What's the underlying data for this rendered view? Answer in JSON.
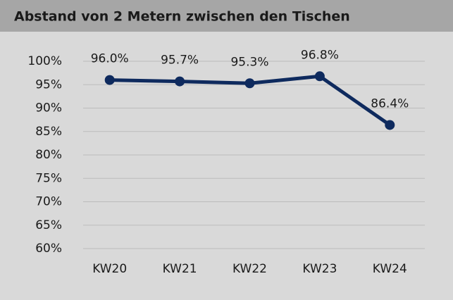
{
  "chart_data": {
    "type": "line",
    "title": "Abstand von 2 Metern zwischen den Tischen",
    "categories": [
      "KW20",
      "KW21",
      "KW22",
      "KW23",
      "KW24"
    ],
    "series": [
      {
        "name": "Abstand",
        "color": "#0e2a5e",
        "values": [
          96.0,
          95.7,
          95.3,
          96.8,
          86.4
        ],
        "value_labels": [
          "96.0%",
          "95.7%",
          "95.3%",
          "96.8%",
          "86.4%"
        ]
      }
    ],
    "ylim": [
      60,
      100
    ],
    "yticks": [
      {
        "value": 60,
        "label": "60%"
      },
      {
        "value": 65,
        "label": "65%"
      },
      {
        "value": 70,
        "label": "70%"
      },
      {
        "value": 75,
        "label": "75%"
      },
      {
        "value": 80,
        "label": "80%"
      },
      {
        "value": 85,
        "label": "85%"
      },
      {
        "value": 90,
        "label": "90%"
      },
      {
        "value": 95,
        "label": "95%"
      },
      {
        "value": 100,
        "label": "100%"
      }
    ],
    "grid": true
  }
}
